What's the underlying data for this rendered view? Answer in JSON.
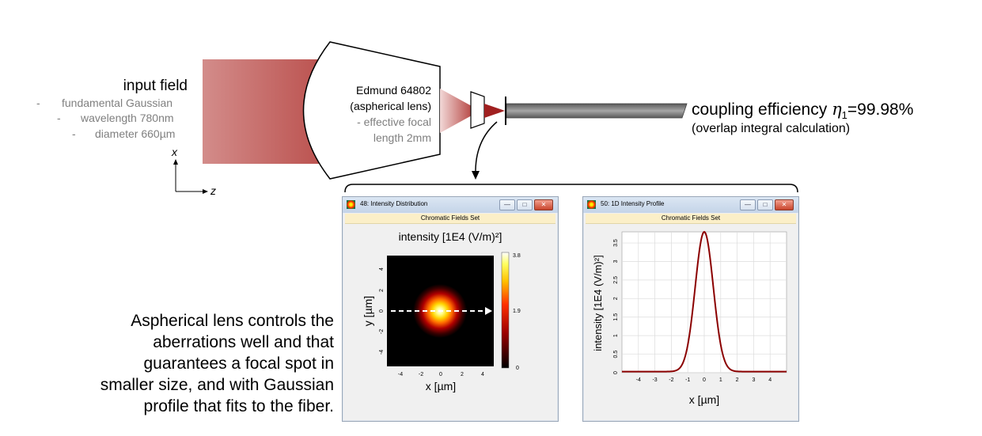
{
  "input_field": {
    "title": "input field",
    "items": [
      {
        "dash": "-",
        "text": "fundamental Gaussian"
      },
      {
        "dash": "-",
        "text": "wavelength 780nm"
      },
      {
        "dash": "-",
        "text": "diameter 660µm"
      }
    ]
  },
  "axes_icon": {
    "vertical": "x",
    "horizontal": "z"
  },
  "lens": {
    "lines": [
      "Edmund 64802",
      "(aspherical lens)",
      "- effective focal",
      "length 2mm"
    ]
  },
  "coupling": {
    "prefix": "coupling efficiency ",
    "symbol": "η",
    "subscript": "1",
    "value": "=99.98%",
    "note": "(overlap integral calculation)"
  },
  "caption": {
    "lines": [
      "Aspherical lens controls the",
      "aberrations well and that",
      "guarantees a focal spot in",
      "smaller size, and with Gaussian",
      "profile that fits to the fiber."
    ]
  },
  "window_2d": {
    "title": "48: Intensity Distribution",
    "band": "Chromatic Fields Set",
    "plot_title": "intensity [1E4 (V/m)²]",
    "xlabel": "x [µm]",
    "ylabel": "y [µm]",
    "x_ticks": [
      "-4",
      "-2",
      "0",
      "2",
      "4"
    ],
    "y_ticks": [
      "4",
      "2",
      "0",
      "-2",
      "-4"
    ],
    "colorbar_ticks": [
      "3.8",
      "1.9",
      "0"
    ]
  },
  "window_1d": {
    "title": "50: 1D Intensity Profile",
    "band": "Chromatic Fields Set",
    "xlabel": "x [µm]",
    "ylabel": "intensity [1E4 (V/m)²]",
    "x_ticks": [
      "-4",
      "-3",
      "-2",
      "-1",
      "0",
      "1",
      "2",
      "3",
      "4"
    ],
    "y_ticks": [
      "3.5",
      "3",
      "2.5",
      "2",
      "1.5",
      "1",
      "0.5",
      "0"
    ]
  },
  "colors": {
    "beam": "#c0504d",
    "curve": "#8b0000",
    "fiber_core": "#7f7f7f",
    "window_border": "#9aa7b8"
  },
  "chart_data": {
    "type": "line",
    "x_range": [
      -5,
      5
    ],
    "y_range": [
      0,
      3.8
    ],
    "peak": 3.8,
    "peak_x": 0,
    "beam_waist_um": 1.1,
    "grid": true,
    "series": [
      {
        "x": [
          -5,
          -3,
          -2,
          -1.5,
          -1,
          -0.5,
          0,
          0.5,
          1,
          1.5,
          2,
          3,
          5
        ],
        "y": [
          0.03,
          0.03,
          0.1,
          0.58,
          1.45,
          2.86,
          3.8,
          2.86,
          1.45,
          0.58,
          0.1,
          0.03,
          0.03
        ]
      }
    ]
  }
}
